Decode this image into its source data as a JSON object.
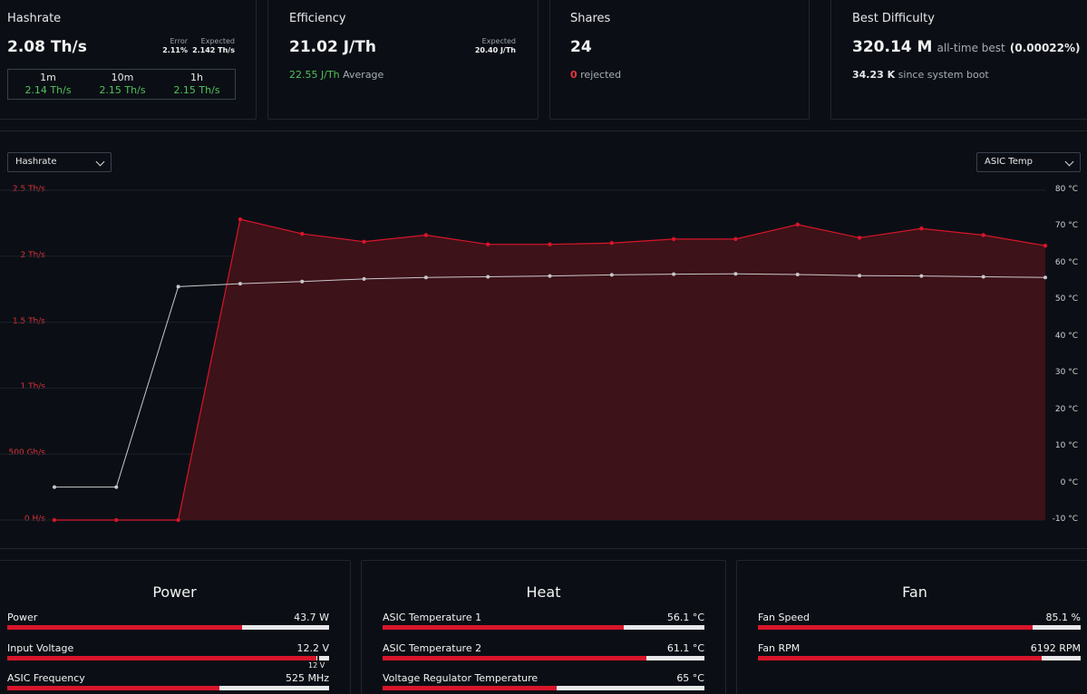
{
  "hashrate": {
    "title": "Hashrate",
    "value": "2.08 Th/s",
    "error_label": "Error",
    "error_value": "2.11%",
    "expected_label": "Expected",
    "expected_value": "2.142 Th/s",
    "periods": [
      {
        "label": "1m",
        "value": "2.14 Th/s"
      },
      {
        "label": "10m",
        "value": "2.15 Th/s"
      },
      {
        "label": "1h",
        "value": "2.15 Th/s"
      }
    ]
  },
  "efficiency": {
    "title": "Efficiency",
    "value": "21.02 J/Th",
    "expected_label": "Expected",
    "expected_value": "20.40 J/Th",
    "average_value": "22.55 J/Th",
    "average_label": "Average"
  },
  "shares": {
    "title": "Shares",
    "value": "24",
    "rejected_count": "0",
    "rejected_label": "rejected"
  },
  "best_difficulty": {
    "title": "Best Difficulty",
    "value": "320.14 M",
    "alltime_label": "all-time best",
    "percent": "(0.00022%)",
    "help_icon": "?",
    "since_value": "34.23 K",
    "since_label": "since system boot"
  },
  "chart": {
    "left_select": "Hashrate",
    "right_select": "ASIC Temp"
  },
  "chart_data": {
    "type": "line",
    "title": "",
    "x": [
      1,
      2,
      3,
      4,
      5,
      6,
      7,
      8,
      9,
      10,
      11,
      12,
      13,
      14,
      15,
      16,
      17
    ],
    "left_axis": {
      "ticks": [
        "2.5 Th/s",
        "2 Th/s",
        "1.5 Th/s",
        "1 Th/s",
        "500 Gh/s",
        "0 H/s"
      ],
      "ylim": [
        0,
        2.5
      ],
      "unit": "Th/s"
    },
    "right_axis": {
      "ticks": [
        "80 °C",
        "70 °C",
        "60 °C",
        "50 °C",
        "40 °C",
        "30 °C",
        "20 °C",
        "10 °C",
        "0 °C",
        "-10 °C"
      ],
      "ylim": [
        -10,
        80
      ],
      "unit": "°C"
    },
    "series": [
      {
        "name": "Hashrate",
        "axis": "left",
        "color": "#d8152a",
        "fill": "#3d1218",
        "values": [
          0,
          0,
          0,
          2.28,
          2.17,
          2.11,
          2.16,
          2.09,
          2.09,
          2.1,
          2.13,
          2.13,
          2.24,
          2.14,
          2.21,
          2.16,
          2.08
        ]
      },
      {
        "name": "ASIC Temp",
        "axis": "right",
        "color": "#c8c8cc",
        "values": [
          -1,
          -1,
          53.7,
          54.5,
          55.1,
          55.8,
          56.2,
          56.4,
          56.6,
          56.9,
          57.1,
          57.2,
          57.0,
          56.7,
          56.6,
          56.4,
          56.2
        ]
      }
    ]
  },
  "power": {
    "title": "Power",
    "rows": [
      {
        "label": "Power",
        "value": "43.7 W",
        "fraction": 0.73
      },
      {
        "label": "Input Voltage",
        "value": "12.2 V",
        "fraction": 0.96,
        "marker_label": "12 V",
        "marker_fraction": 0.965
      },
      {
        "label": "ASIC Frequency",
        "value": "525 MHz",
        "fraction": 0.66
      }
    ]
  },
  "heat": {
    "title": "Heat",
    "rows": [
      {
        "label": "ASIC Temperature 1",
        "value": "56.1 °C",
        "fraction": 0.75
      },
      {
        "label": "ASIC Temperature 2",
        "value": "61.1 °C",
        "fraction": 0.82
      },
      {
        "label": "Voltage Regulator Temperature",
        "value": "65 °C",
        "fraction": 0.54
      }
    ]
  },
  "fan": {
    "title": "Fan",
    "rows": [
      {
        "label": "Fan Speed",
        "value": "85.1 %",
        "fraction": 0.851
      },
      {
        "label": "Fan RPM",
        "value": "6192 RPM",
        "fraction": 0.88
      }
    ]
  }
}
